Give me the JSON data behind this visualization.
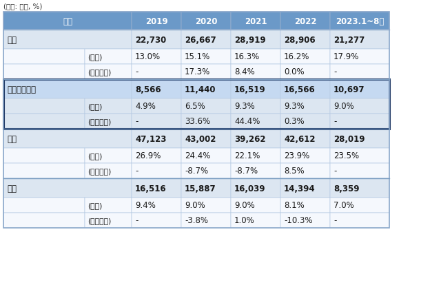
{
  "unit_label": "(단위: 건수, %)",
  "col_headers": [
    "구분",
    "2019",
    "2020",
    "2021",
    "2022",
    "2023.1~8월"
  ],
  "rows": [
    {
      "label": "식품",
      "sub": "",
      "values": [
        "22,730",
        "26,667",
        "28,919",
        "28,906",
        "21,277"
      ],
      "is_main": true,
      "highlight": false
    },
    {
      "label": "",
      "sub": "(비중)",
      "values": [
        "13.0%",
        "15.1%",
        "16.3%",
        "16.2%",
        "17.9%"
      ],
      "is_main": false,
      "highlight": false
    },
    {
      "label": "",
      "sub": "(전년대비)",
      "values": [
        "-",
        "17.3%",
        "8.4%",
        "0.0%",
        "-"
      ],
      "is_main": false,
      "highlight": false
    },
    {
      "label": "건강기능식품",
      "sub": "",
      "values": [
        "8,566",
        "11,440",
        "16,519",
        "16,566",
        "10,697"
      ],
      "is_main": true,
      "highlight": true
    },
    {
      "label": "",
      "sub": "(비중)",
      "values": [
        "4.9%",
        "6.5%",
        "9.3%",
        "9.3%",
        "9.0%"
      ],
      "is_main": false,
      "highlight": true
    },
    {
      "label": "",
      "sub": "(전년대비)",
      "values": [
        "-",
        "33.6%",
        "44.4%",
        "0.3%",
        "-"
      ],
      "is_main": false,
      "highlight": true
    },
    {
      "label": "의류",
      "sub": "",
      "values": [
        "47,123",
        "43,002",
        "39,262",
        "42,612",
        "28,019"
      ],
      "is_main": true,
      "highlight": false
    },
    {
      "label": "",
      "sub": "(비중)",
      "values": [
        "26.9%",
        "24.4%",
        "22.1%",
        "23.9%",
        "23.5%"
      ],
      "is_main": false,
      "highlight": false
    },
    {
      "label": "",
      "sub": "(전년대비)",
      "values": [
        "-",
        "-8.7%",
        "-8.7%",
        "8.5%",
        "-"
      ],
      "is_main": false,
      "highlight": false
    },
    {
      "label": "가전",
      "sub": "",
      "values": [
        "16,516",
        "15,887",
        "16,039",
        "14,394",
        "8,359"
      ],
      "is_main": true,
      "highlight": false
    },
    {
      "label": "",
      "sub": "(비중)",
      "values": [
        "9.4%",
        "9.0%",
        "9.0%",
        "8.1%",
        "7.0%"
      ],
      "is_main": false,
      "highlight": false
    },
    {
      "label": "",
      "sub": "(전년대비)",
      "values": [
        "-",
        "-3.8%",
        "1.0%",
        "-10.3%",
        "-"
      ],
      "is_main": false,
      "highlight": false
    }
  ],
  "header_bg": "#6b99c8",
  "header_text": "#ffffff",
  "main_row_bg_normal": "#dce6f1",
  "sub_row_bg_normal": "#f5f8fd",
  "main_row_bg_highlight": "#c5d9f1",
  "sub_row_bg_highlight": "#dce6f1",
  "highlight_border": "#1f3864",
  "border_color_outer": "#8eaacc",
  "border_color_inner": "#b8cce4",
  "section_border_color": "#7a9cc0",
  "text_color": "#1a1a1a",
  "font_size_main": 8.5,
  "font_size_sub": 7.8,
  "font_size_header": 8.5,
  "font_size_unit": 7.5
}
